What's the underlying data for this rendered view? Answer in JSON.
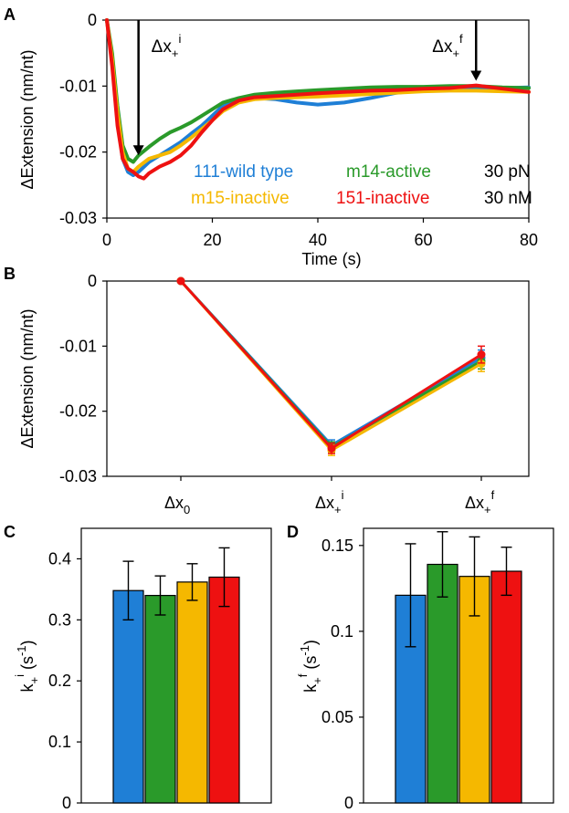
{
  "figure": {
    "panels": {
      "A": "A",
      "B": "B",
      "C": "C",
      "D": "D"
    }
  },
  "colors": {
    "111-wild type": "#1f7fd6",
    "m14-active": "#2a9a2a",
    "m15-inactive": "#f5b800",
    "151-inactive": "#ee1111"
  },
  "chart_data": [
    {
      "panel": "A",
      "type": "line",
      "xlabel": "Time (s)",
      "ylabel": "ΔExtension (nm/nt)",
      "xlim": [
        0,
        80
      ],
      "ylim": [
        -0.03,
        0
      ],
      "xticks": [
        0,
        20,
        40,
        60,
        80
      ],
      "yticks": [
        0,
        -0.01,
        -0.02,
        -0.03
      ],
      "xtick_labels": [
        "0",
        "20",
        "40",
        "60",
        "80"
      ],
      "ytick_labels": [
        "0",
        "-0.01",
        "-0.02",
        "-0.03"
      ],
      "grid": false,
      "legend_position": "bottom-center",
      "conditions": [
        "30 pN",
        "30 nM"
      ],
      "annotations": [
        {
          "label": "Δx+i",
          "x": 6
        },
        {
          "label": "Δx+f",
          "x": 70
        }
      ],
      "series": [
        {
          "name": "111-wild type",
          "x": [
            0,
            1,
            2,
            3,
            4,
            5,
            6,
            8,
            10,
            12,
            14,
            16,
            18,
            20,
            22,
            25,
            28,
            32,
            36,
            40,
            45,
            50,
            55,
            60,
            65,
            70,
            75,
            80
          ],
          "y": [
            0,
            -0.006,
            -0.015,
            -0.021,
            -0.023,
            -0.0235,
            -0.023,
            -0.0215,
            -0.0205,
            -0.0195,
            -0.0185,
            -0.0172,
            -0.016,
            -0.0145,
            -0.013,
            -0.012,
            -0.0118,
            -0.012,
            -0.0125,
            -0.0128,
            -0.0125,
            -0.0118,
            -0.011,
            -0.0106,
            -0.0105,
            -0.0104,
            -0.0103,
            -0.0102
          ]
        },
        {
          "name": "m14-active",
          "x": [
            0,
            1,
            2,
            3,
            4,
            5,
            6,
            8,
            10,
            12,
            14,
            16,
            18,
            20,
            22,
            25,
            28,
            32,
            36,
            40,
            45,
            50,
            55,
            60,
            65,
            70,
            75,
            80
          ],
          "y": [
            0,
            -0.005,
            -0.013,
            -0.019,
            -0.021,
            -0.0215,
            -0.0205,
            -0.0192,
            -0.018,
            -0.017,
            -0.0163,
            -0.0155,
            -0.0145,
            -0.0135,
            -0.0125,
            -0.0118,
            -0.0113,
            -0.011,
            -0.0108,
            -0.0106,
            -0.0104,
            -0.0102,
            -0.0101,
            -0.0101,
            -0.01,
            -0.01,
            -0.0102,
            -0.0103
          ]
        },
        {
          "name": "m15-inactive",
          "x": [
            0,
            1,
            2,
            3,
            4,
            5,
            6,
            8,
            10,
            12,
            14,
            16,
            18,
            20,
            22,
            25,
            28,
            32,
            36,
            40,
            45,
            50,
            55,
            60,
            65,
            70,
            75,
            80
          ],
          "y": [
            0,
            -0.006,
            -0.014,
            -0.02,
            -0.0225,
            -0.023,
            -0.0222,
            -0.021,
            -0.0205,
            -0.02,
            -0.019,
            -0.0178,
            -0.0165,
            -0.0152,
            -0.0138,
            -0.0125,
            -0.012,
            -0.0118,
            -0.0117,
            -0.0116,
            -0.0114,
            -0.0112,
            -0.011,
            -0.0108,
            -0.0107,
            -0.0107,
            -0.0108,
            -0.0109
          ]
        },
        {
          "name": "151-inactive",
          "x": [
            0,
            1,
            2,
            3,
            4,
            5,
            6,
            7,
            8,
            10,
            12,
            14,
            16,
            18,
            20,
            22,
            25,
            28,
            32,
            36,
            40,
            45,
            50,
            55,
            60,
            65,
            70,
            75,
            80
          ],
          "y": [
            0,
            -0.007,
            -0.016,
            -0.021,
            -0.0225,
            -0.023,
            -0.0237,
            -0.024,
            -0.0232,
            -0.0222,
            -0.0215,
            -0.0205,
            -0.019,
            -0.017,
            -0.0152,
            -0.0135,
            -0.0122,
            -0.0117,
            -0.0115,
            -0.0113,
            -0.0111,
            -0.0109,
            -0.0107,
            -0.0106,
            -0.0104,
            -0.0103,
            -0.0099,
            -0.0104,
            -0.0109
          ]
        }
      ]
    },
    {
      "panel": "B",
      "type": "line",
      "ylabel": "ΔExtension (nm/nt)",
      "categories": [
        "Δx0",
        "Δx+i",
        "Δx+f"
      ],
      "category_labels": [
        {
          "main": "Δx",
          "sub": "0",
          "sup": ""
        },
        {
          "main": "Δx",
          "sub": "+",
          "sup": "i"
        },
        {
          "main": "Δx",
          "sub": "+",
          "sup": "f"
        }
      ],
      "ylim": [
        -0.03,
        0
      ],
      "yticks": [
        0,
        -0.01,
        -0.02,
        -0.03
      ],
      "ytick_labels": [
        "0",
        "-0.01",
        "-0.02",
        "-0.03"
      ],
      "grid": false,
      "series": [
        {
          "name": "111-wild type",
          "values": [
            0,
            -0.0252,
            -0.0118
          ],
          "errors": [
            0,
            0.0008,
            0.0012
          ]
        },
        {
          "name": "m14-active",
          "values": [
            0,
            -0.0255,
            -0.0123
          ],
          "errors": [
            0,
            0.0008,
            0.0012
          ]
        },
        {
          "name": "m15-inactive",
          "values": [
            0,
            -0.026,
            -0.0127
          ],
          "errors": [
            0,
            0.0008,
            0.0012
          ]
        },
        {
          "name": "151-inactive",
          "values": [
            0,
            -0.0257,
            -0.0113
          ],
          "errors": [
            0,
            0.0008,
            0.0013
          ]
        }
      ]
    },
    {
      "panel": "C",
      "type": "bar",
      "ylabel": {
        "main": "k",
        "sub": "+",
        "sup": "i",
        "unit_main": " (s",
        "unit_sup": "-1",
        "unit_close": ")"
      },
      "categories": [
        "111-wild type",
        "m14-active",
        "m15-inactive",
        "151-inactive"
      ],
      "values": [
        0.348,
        0.34,
        0.362,
        0.37
      ],
      "errors": [
        0.048,
        0.032,
        0.03,
        0.048
      ],
      "ylim": [
        0,
        0.45
      ],
      "yticks": [
        0,
        0.1,
        0.2,
        0.3,
        0.4
      ],
      "ytick_labels": [
        "0",
        "0.1",
        "0.2",
        "0.3",
        "0.4"
      ],
      "grid": false
    },
    {
      "panel": "D",
      "type": "bar",
      "ylabel": {
        "main": "k",
        "sub": "+",
        "sup": "f",
        "unit_main": " (s",
        "unit_sup": "-1",
        "unit_close": ")"
      },
      "categories": [
        "111-wild type",
        "m14-active",
        "m15-inactive",
        "151-inactive"
      ],
      "values": [
        0.121,
        0.139,
        0.132,
        0.135
      ],
      "errors": [
        0.03,
        0.019,
        0.023,
        0.014
      ],
      "ylim": [
        0,
        0.16
      ],
      "yticks": [
        0,
        0.05,
        0.1,
        0.15
      ],
      "ytick_labels": [
        "0",
        "0.05",
        "0.1",
        "0.15"
      ],
      "grid": false
    }
  ]
}
